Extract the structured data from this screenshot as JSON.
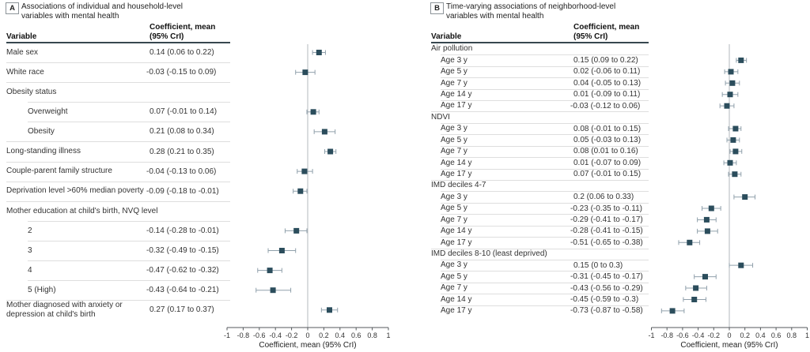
{
  "colors": {
    "marker": "#2b4d5c",
    "error_bar": "#90a0ab",
    "zero_line": "#b3b8bc",
    "axis": "#555a5e",
    "separator": "#dedede",
    "header_rule": "#37474f"
  },
  "chart_data": [
    {
      "type": "forest",
      "panel_label": "A",
      "title_line1": "Associations of individual and household-level",
      "title_line2": "variables with mental health",
      "col_variable": "Variable",
      "col_value_line1": "Coefficient, mean",
      "col_value_line2": "(95% CrI)",
      "xlabel": "Coefficient, mean (95% CrI)",
      "xlim": [
        -1,
        1
      ],
      "xticks": [
        "-1",
        "-0.8",
        "-0.6",
        "-0.4",
        "-0.2",
        "0",
        "0.2",
        "0.4",
        "0.6",
        "0.8",
        "1"
      ],
      "rows": [
        {
          "label": "Male sex",
          "value": "0.14 (0.06 to 0.22)",
          "mean": 0.14,
          "lo": 0.06,
          "hi": 0.22,
          "indent": 0
        },
        {
          "label": "White race",
          "value": "-0.03 (-0.15 to 0.09)",
          "mean": -0.03,
          "lo": -0.15,
          "hi": 0.09,
          "indent": 0
        },
        {
          "label": "Obesity status",
          "group": true,
          "indent": 0
        },
        {
          "label": "Overweight",
          "value": "0.07 (-0.01 to 0.14)",
          "mean": 0.07,
          "lo": -0.01,
          "hi": 0.14,
          "indent": 1
        },
        {
          "label": "Obesity",
          "value": "0.21 (0.08 to 0.34)",
          "mean": 0.21,
          "lo": 0.08,
          "hi": 0.34,
          "indent": 1
        },
        {
          "label": "Long-standing illness",
          "value": "0.28 (0.21 to 0.35)",
          "mean": 0.28,
          "lo": 0.21,
          "hi": 0.35,
          "indent": 0
        },
        {
          "label": "Couple-parent family structure",
          "value": "-0.04 (-0.13 to 0.06)",
          "mean": -0.04,
          "lo": -0.13,
          "hi": 0.06,
          "indent": 0
        },
        {
          "label": "Deprivation level >60% median poverty",
          "value": "-0.09 (-0.18 to -0.01)",
          "mean": -0.09,
          "lo": -0.18,
          "hi": -0.01,
          "indent": 0
        },
        {
          "label": "Mother education at child's birth, NVQ level",
          "group": true,
          "indent": 0
        },
        {
          "label": "2",
          "value": "-0.14 (-0.28 to -0.01)",
          "mean": -0.14,
          "lo": -0.28,
          "hi": -0.01,
          "indent": 1
        },
        {
          "label": "3",
          "value": "-0.32 (-0.49 to -0.15)",
          "mean": -0.32,
          "lo": -0.49,
          "hi": -0.15,
          "indent": 1
        },
        {
          "label": "4",
          "value": "-0.47 (-0.62 to -0.32)",
          "mean": -0.47,
          "lo": -0.62,
          "hi": -0.32,
          "indent": 1
        },
        {
          "label": "5 (High)",
          "value": "-0.43 (-0.64 to -0.21)",
          "mean": -0.43,
          "lo": -0.64,
          "hi": -0.21,
          "indent": 1
        },
        {
          "label": "Mother diagnosed with anxiety or depression at child's birth",
          "value": "0.27 (0.17 to 0.37)",
          "mean": 0.27,
          "lo": 0.17,
          "hi": 0.37,
          "indent": 0
        }
      ]
    },
    {
      "type": "forest",
      "panel_label": "B",
      "title_line1": "Time-varying associations of neighborhood-level",
      "title_line2": "variables with mental health",
      "col_variable": "Variable",
      "col_value_line1": "Coefficient, mean",
      "col_value_line2": "(95% CrI)",
      "xlabel": "Coefficient, mean (95% CrI)",
      "xlim": [
        -1,
        1
      ],
      "xticks": [
        "-1",
        "-0.8",
        "-0.6",
        "-0.4",
        "-0.2",
        "0",
        "0.2",
        "0.4",
        "0.6",
        "0.8",
        "1"
      ],
      "rows": [
        {
          "label": "Air pollution",
          "group": true,
          "indent": 0
        },
        {
          "label": "Age 3 y",
          "value": "0.15 (0.09 to 0.22)",
          "mean": 0.15,
          "lo": 0.09,
          "hi": 0.22,
          "indent": 1
        },
        {
          "label": "Age 5 y",
          "value": "0.02 (-0.06 to 0.11)",
          "mean": 0.02,
          "lo": -0.06,
          "hi": 0.11,
          "indent": 1
        },
        {
          "label": "Age 7 y",
          "value": "0.04 (-0.05 to 0.13)",
          "mean": 0.04,
          "lo": -0.05,
          "hi": 0.13,
          "indent": 1
        },
        {
          "label": "Age 14 y",
          "value": "0.01 (-0.09 to 0.11)",
          "mean": 0.01,
          "lo": -0.09,
          "hi": 0.11,
          "indent": 1
        },
        {
          "label": "Age 17 y",
          "value": "-0.03 (-0.12 to 0.06)",
          "mean": -0.03,
          "lo": -0.12,
          "hi": 0.06,
          "indent": 1
        },
        {
          "label": "NDVI",
          "group": true,
          "indent": 0
        },
        {
          "label": "Age 3 y",
          "value": "0.08 (-0.01 to 0.15)",
          "mean": 0.08,
          "lo": -0.01,
          "hi": 0.15,
          "indent": 1
        },
        {
          "label": "Age 5 y",
          "value": "0.05 (-0.03 to 0.13)",
          "mean": 0.05,
          "lo": -0.03,
          "hi": 0.13,
          "indent": 1
        },
        {
          "label": "Age 7 y",
          "value": "0.08 (0.01 to 0.16)",
          "mean": 0.08,
          "lo": 0.01,
          "hi": 0.16,
          "indent": 1
        },
        {
          "label": "Age 14 y",
          "value": "0.01 (-0.07 to 0.09)",
          "mean": 0.01,
          "lo": -0.07,
          "hi": 0.09,
          "indent": 1
        },
        {
          "label": "Age 17 y",
          "value": "0.07 (-0.01 to 0.15)",
          "mean": 0.07,
          "lo": -0.01,
          "hi": 0.15,
          "indent": 1
        },
        {
          "label": "IMD deciles 4-7",
          "group": true,
          "indent": 0
        },
        {
          "label": "Age 3 y",
          "value": "0.2 (0.06 to 0.33)",
          "mean": 0.2,
          "lo": 0.06,
          "hi": 0.33,
          "indent": 1
        },
        {
          "label": "Age 5 y",
          "value": "-0.23 (-0.35 to -0.11)",
          "mean": -0.23,
          "lo": -0.35,
          "hi": -0.11,
          "indent": 1
        },
        {
          "label": "Age 7 y",
          "value": "-0.29 (-0.41 to -0.17)",
          "mean": -0.29,
          "lo": -0.41,
          "hi": -0.17,
          "indent": 1
        },
        {
          "label": "Age 14 y",
          "value": "-0.28 (-0.41 to -0.15)",
          "mean": -0.28,
          "lo": -0.41,
          "hi": -0.15,
          "indent": 1
        },
        {
          "label": "Age 17 y",
          "value": "-0.51 (-0.65 to -0.38)",
          "mean": -0.51,
          "lo": -0.65,
          "hi": -0.38,
          "indent": 1
        },
        {
          "label": "IMD deciles 8-10 (least deprived)",
          "group": true,
          "indent": 0
        },
        {
          "label": "Age 3 y",
          "value": "0.15 (0 to 0.3)",
          "mean": 0.15,
          "lo": 0,
          "hi": 0.3,
          "indent": 1
        },
        {
          "label": "Age 5 y",
          "value": "-0.31 (-0.45 to -0.17)",
          "mean": -0.31,
          "lo": -0.45,
          "hi": -0.17,
          "indent": 1
        },
        {
          "label": "Age 7 y",
          "value": "-0.43 (-0.56 to -0.29)",
          "mean": -0.43,
          "lo": -0.56,
          "hi": -0.29,
          "indent": 1
        },
        {
          "label": "Age 14 y",
          "value": "-0.45 (-0.59 to -0.3)",
          "mean": -0.45,
          "lo": -0.59,
          "hi": -0.3,
          "indent": 1
        },
        {
          "label": "Age 17 y",
          "value": "-0.73 (-0.87 to -0.58)",
          "mean": -0.73,
          "lo": -0.87,
          "hi": -0.58,
          "indent": 1
        }
      ]
    }
  ]
}
